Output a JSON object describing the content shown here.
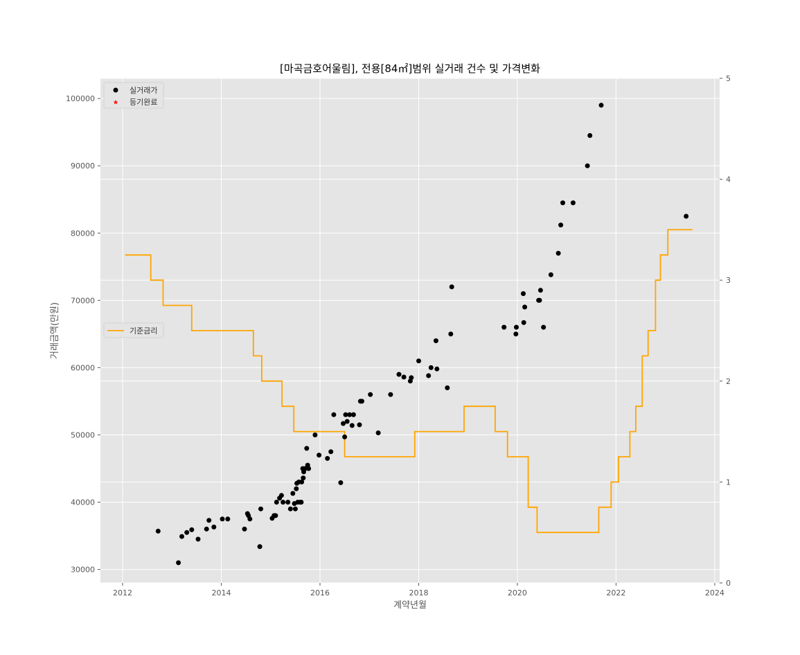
{
  "chart_data": {
    "type": "scatter",
    "title": "[마곡금호어울림], 전용[84㎡]범위 실거래 건수 및 가격변화",
    "xlabel": "계약년월",
    "ylabel": "거래금액(만원)",
    "xlim": [
      2011.55,
      2024.1
    ],
    "ylim": [
      28000,
      103000
    ],
    "y2lim": [
      0,
      5
    ],
    "x_ticks": [
      2012,
      2014,
      2016,
      2018,
      2020,
      2022,
      2024
    ],
    "x_tick_labels": [
      "2012",
      "2014",
      "2016",
      "2018",
      "2020",
      "2022",
      "2024"
    ],
    "y_ticks": [
      30000,
      40000,
      50000,
      60000,
      70000,
      80000,
      90000,
      100000
    ],
    "y_tick_labels": [
      "30000",
      "40000",
      "50000",
      "60000",
      "70000",
      "80000",
      "90000",
      "100000"
    ],
    "y2_ticks": [
      0,
      1,
      2,
      3,
      4,
      5
    ],
    "y2_tick_labels": [
      "0",
      "1",
      "2",
      "3",
      "4",
      "5"
    ],
    "grid": true,
    "background": "#e5e5e5",
    "legend_left": {
      "position": "upper-left",
      "items": [
        {
          "label": "실거래가",
          "marker": "circle",
          "color": "#000000"
        },
        {
          "label": "등기완료",
          "marker": "star",
          "color": "#ff0000"
        }
      ]
    },
    "legend_right": {
      "position": "center-left",
      "items": [
        {
          "label": "기준금리",
          "marker": "line",
          "color": "#ffa500"
        }
      ]
    },
    "series": [
      {
        "name": "실거래가",
        "type": "scatter",
        "axis": "left",
        "color": "#000000",
        "points": [
          [
            2012.72,
            35700
          ],
          [
            2013.13,
            31000
          ],
          [
            2013.2,
            34900
          ],
          [
            2013.3,
            35500
          ],
          [
            2013.4,
            35900
          ],
          [
            2013.53,
            34500
          ],
          [
            2013.7,
            36000
          ],
          [
            2013.75,
            37300
          ],
          [
            2013.85,
            36300
          ],
          [
            2014.02,
            37500
          ],
          [
            2014.13,
            37500
          ],
          [
            2014.47,
            36000
          ],
          [
            2014.53,
            38300
          ],
          [
            2014.55,
            38000
          ],
          [
            2014.58,
            37500
          ],
          [
            2014.78,
            33400
          ],
          [
            2014.8,
            39000
          ],
          [
            2015.03,
            37600
          ],
          [
            2015.07,
            38000
          ],
          [
            2015.1,
            38000
          ],
          [
            2015.12,
            40000
          ],
          [
            2015.18,
            40600
          ],
          [
            2015.22,
            41000
          ],
          [
            2015.25,
            40000
          ],
          [
            2015.35,
            40000
          ],
          [
            2015.4,
            39000
          ],
          [
            2015.45,
            41300
          ],
          [
            2015.48,
            39800
          ],
          [
            2015.5,
            39000
          ],
          [
            2015.52,
            42000
          ],
          [
            2015.53,
            42800
          ],
          [
            2015.55,
            40000
          ],
          [
            2015.57,
            43000
          ],
          [
            2015.6,
            40000
          ],
          [
            2015.62,
            40000
          ],
          [
            2015.63,
            43000
          ],
          [
            2015.65,
            45000
          ],
          [
            2015.66,
            43600
          ],
          [
            2015.67,
            44500
          ],
          [
            2015.7,
            45000
          ],
          [
            2015.73,
            48000
          ],
          [
            2015.75,
            45500
          ],
          [
            2015.77,
            45000
          ],
          [
            2015.9,
            50000
          ],
          [
            2015.98,
            47000
          ],
          [
            2016.15,
            46500
          ],
          [
            2016.22,
            47500
          ],
          [
            2016.28,
            53000
          ],
          [
            2016.42,
            42900
          ],
          [
            2016.47,
            51700
          ],
          [
            2016.5,
            49700
          ],
          [
            2016.52,
            53000
          ],
          [
            2016.55,
            52000
          ],
          [
            2016.6,
            53000
          ],
          [
            2016.65,
            51400
          ],
          [
            2016.68,
            53000
          ],
          [
            2016.8,
            51500
          ],
          [
            2016.82,
            55000
          ],
          [
            2016.85,
            55000
          ],
          [
            2017.02,
            56000
          ],
          [
            2017.18,
            50300
          ],
          [
            2017.43,
            56000
          ],
          [
            2017.6,
            59000
          ],
          [
            2017.7,
            58600
          ],
          [
            2017.83,
            58000
          ],
          [
            2017.85,
            58500
          ],
          [
            2018.0,
            61000
          ],
          [
            2018.2,
            58800
          ],
          [
            2018.25,
            60000
          ],
          [
            2018.35,
            64000
          ],
          [
            2018.37,
            59800
          ],
          [
            2018.58,
            57000
          ],
          [
            2018.65,
            65000
          ],
          [
            2018.67,
            72000
          ],
          [
            2019.73,
            66000
          ],
          [
            2019.97,
            65000
          ],
          [
            2019.98,
            66000
          ],
          [
            2020.12,
            71000
          ],
          [
            2020.13,
            66700
          ],
          [
            2020.15,
            69000
          ],
          [
            2020.43,
            70000
          ],
          [
            2020.45,
            70000
          ],
          [
            2020.47,
            71500
          ],
          [
            2020.53,
            66000
          ],
          [
            2020.68,
            73800
          ],
          [
            2020.83,
            77000
          ],
          [
            2020.88,
            81200
          ],
          [
            2020.92,
            84500
          ],
          [
            2021.13,
            84500
          ],
          [
            2021.42,
            90000
          ],
          [
            2021.47,
            94500
          ],
          [
            2021.7,
            99000
          ],
          [
            2023.42,
            82500
          ]
        ]
      },
      {
        "name": "기준금리",
        "type": "step",
        "axis": "right",
        "color": "#ffa500",
        "points": [
          [
            2012.05,
            3.25
          ],
          [
            2012.57,
            3.0
          ],
          [
            2012.82,
            2.75
          ],
          [
            2013.4,
            2.5
          ],
          [
            2014.65,
            2.25
          ],
          [
            2014.82,
            2.0
          ],
          [
            2015.23,
            1.75
          ],
          [
            2015.47,
            1.5
          ],
          [
            2016.5,
            1.25
          ],
          [
            2017.92,
            1.5
          ],
          [
            2018.92,
            1.75
          ],
          [
            2019.55,
            1.5
          ],
          [
            2019.8,
            1.25
          ],
          [
            2020.22,
            0.75
          ],
          [
            2020.4,
            0.5
          ],
          [
            2021.65,
            0.75
          ],
          [
            2021.9,
            1.0
          ],
          [
            2022.05,
            1.25
          ],
          [
            2022.28,
            1.5
          ],
          [
            2022.4,
            1.75
          ],
          [
            2022.53,
            2.25
          ],
          [
            2022.65,
            2.5
          ],
          [
            2022.8,
            3.0
          ],
          [
            2022.9,
            3.25
          ],
          [
            2023.05,
            3.5
          ],
          [
            2023.55,
            3.5
          ]
        ]
      }
    ]
  }
}
